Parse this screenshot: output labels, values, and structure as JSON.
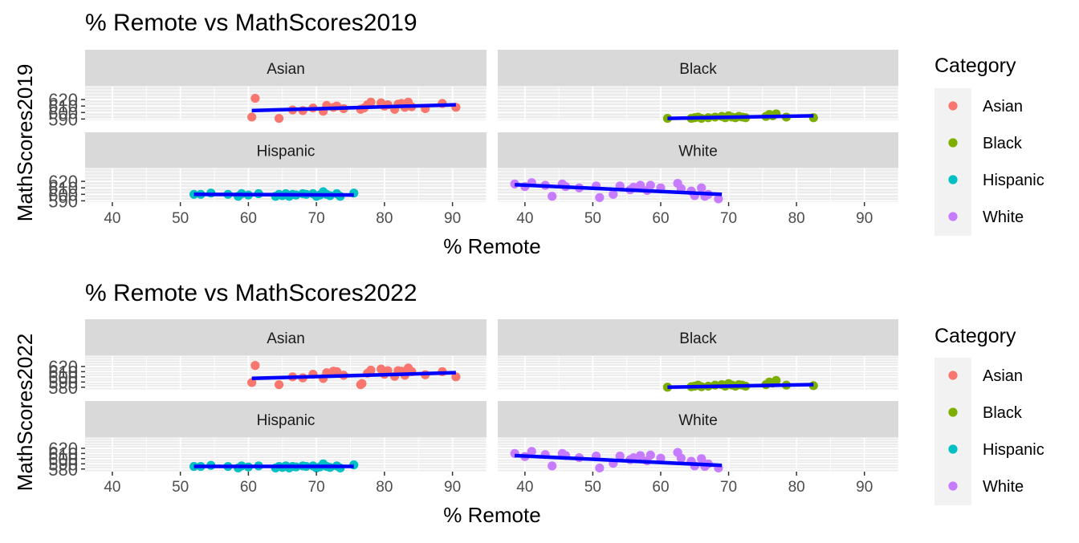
{
  "chart_data": [
    {
      "type": "scatter",
      "title": "% Remote vs MathScores2019",
      "xlabel": "% Remote",
      "ylabel": "MathScores2019",
      "xlim": [
        36,
        95
      ],
      "ylim": [
        588,
        640
      ],
      "x_ticks": [
        40,
        50,
        60,
        70,
        80,
        90
      ],
      "y_ticks": [
        590,
        600,
        610,
        620
      ],
      "y_tick_labels": [
        "590",
        "600",
        "610",
        "620"
      ],
      "legend_title": "Category",
      "legend_position": "right",
      "grid": true,
      "facets": [
        {
          "name": "Asian",
          "color": "#F8766D",
          "x": [
            60.5,
            61,
            64.5,
            66.5,
            68,
            69.5,
            71,
            71.5,
            72.5,
            73,
            74,
            76.5,
            77,
            77.5,
            78,
            79.5,
            80,
            80.5,
            81.5,
            82,
            82.5,
            83,
            83.5,
            84,
            86,
            88.5,
            90.5
          ],
          "y": [
            593,
            622,
            591,
            604,
            603,
            607,
            602,
            611,
            608,
            610,
            606,
            605,
            607,
            612,
            616,
            615,
            610,
            612,
            605,
            613,
            614,
            608,
            616,
            609,
            606,
            614,
            608
          ],
          "fit": [
            [
              60.5,
              603
            ],
            [
              90.5,
              612
            ]
          ]
        },
        {
          "name": "Black",
          "color": "#7CAE00",
          "x": [
            61,
            64.5,
            65,
            65.5,
            66,
            67,
            68,
            69,
            69.5,
            70,
            70.5,
            71,
            71.5,
            72,
            72.5,
            75.5,
            76,
            76.5,
            77,
            78.5,
            82.5
          ],
          "y": [
            591,
            591,
            592,
            593,
            591,
            592,
            593,
            594,
            592,
            595,
            593,
            592,
            594,
            593,
            592,
            594,
            597,
            595,
            598,
            593,
            592
          ],
          "fit": [
            [
              61,
              591
            ],
            [
              82.5,
              595
            ]
          ]
        },
        {
          "name": "Hispanic",
          "color": "#00BFC4",
          "x": [
            52,
            53,
            54.5,
            57,
            58.5,
            59,
            60,
            61.5,
            64,
            64.5,
            65,
            65.5,
            66,
            66.5,
            67,
            68,
            68.5,
            69.5,
            70,
            70.5,
            71,
            71.5,
            72,
            73,
            73.5,
            75.5
          ],
          "y": [
            600,
            600,
            602,
            600,
            597,
            601,
            599,
            601,
            597,
            600,
            598,
            601,
            597,
            600,
            599,
            601,
            600,
            601,
            597,
            599,
            604,
            600,
            598,
            601,
            597,
            602
          ],
          "fit": [
            [
              52,
              600
            ],
            [
              75.5,
              599
            ]
          ]
        },
        {
          "name": "White",
          "color": "#C77CFF",
          "x": [
            38.5,
            40,
            41,
            43,
            44,
            45.5,
            46,
            48,
            50.5,
            51,
            53,
            54,
            55.5,
            56,
            57,
            58,
            58.5,
            60,
            62.5,
            63,
            64.5,
            65,
            66,
            66.5,
            67,
            68.5
          ],
          "y": [
            616,
            612,
            618,
            614,
            597,
            616,
            612,
            610,
            613,
            595,
            600,
            613,
            607,
            611,
            614,
            606,
            614,
            610,
            617,
            609,
            605,
            598,
            610,
            597,
            600,
            593
          ],
          "fit": [
            [
              38.5,
              615
            ],
            [
              69,
              600
            ]
          ]
        }
      ]
    },
    {
      "type": "scatter",
      "title": "% Remote vs MathScores2022",
      "xlabel": "% Remote",
      "ylabel": "MathScores2022",
      "xlim": [
        36,
        95
      ],
      "ylim": [
        575,
        640
      ],
      "x_ticks": [
        40,
        50,
        60,
        70,
        80,
        90
      ],
      "y_ticks": [
        580,
        590,
        600,
        610,
        620
      ],
      "y_tick_labels": [
        "580",
        "590",
        "600",
        "610",
        "620"
      ],
      "legend_title": "Category",
      "legend_position": "right",
      "grid": true,
      "facets": [
        {
          "name": "Asian",
          "color": "#F8766D",
          "x": [
            60.5,
            61,
            64.5,
            66.5,
            68,
            69.5,
            71,
            71.5,
            72.5,
            73,
            74,
            76.5,
            76.7,
            77.5,
            78,
            79.5,
            80,
            80.5,
            81.5,
            82,
            82.5,
            83,
            83.5,
            84,
            86,
            88.5,
            90.5
          ],
          "y": [
            589,
            622,
            585,
            600,
            598,
            605,
            597,
            608,
            611,
            610,
            603,
            585,
            587,
            607,
            613,
            615,
            605,
            612,
            601,
            612,
            611,
            603,
            617,
            610,
            604,
            610,
            600
          ],
          "fit": [
            [
              60.5,
              597
            ],
            [
              90.5,
              608
            ]
          ]
        },
        {
          "name": "Black",
          "color": "#7CAE00",
          "x": [
            61,
            64.5,
            65,
            65.5,
            66,
            67,
            68,
            69,
            69.5,
            70,
            70.5,
            71,
            71.5,
            72,
            72.5,
            75.5,
            76,
            76.5,
            77,
            78.5,
            82.5
          ],
          "y": [
            580,
            581,
            582,
            584,
            581,
            582,
            584,
            585,
            582,
            587,
            584,
            582,
            585,
            584,
            582,
            585,
            590,
            588,
            593,
            584,
            583
          ],
          "fit": [
            [
              61,
              580
            ],
            [
              82.5,
              585
            ]
          ]
        },
        {
          "name": "Hispanic",
          "color": "#00BFC4",
          "x": [
            52,
            53,
            54.5,
            57,
            58.5,
            59,
            60,
            61.5,
            64,
            64.5,
            65,
            65.5,
            66,
            66.5,
            67,
            68,
            68.5,
            69.5,
            70,
            70.5,
            71,
            71.5,
            72,
            73,
            73.5,
            75.5
          ],
          "y": [
            585,
            585,
            587,
            585,
            582,
            586,
            584,
            586,
            582,
            585,
            583,
            586,
            582,
            585,
            584,
            586,
            585,
            586,
            582,
            584,
            590,
            585,
            583,
            586,
            582,
            588
          ],
          "fit": [
            [
              52,
              585
            ],
            [
              75.5,
              585
            ]
          ]
        },
        {
          "name": "White",
          "color": "#C77CFF",
          "x": [
            38.5,
            40,
            41,
            43,
            44,
            45.5,
            46,
            48,
            50.5,
            51,
            53,
            54,
            55.5,
            56,
            57,
            58,
            58.5,
            60,
            62.5,
            63,
            64.5,
            65,
            66,
            66.5,
            67,
            68.5
          ],
          "y": [
            610,
            604,
            614,
            608,
            586,
            610,
            606,
            602,
            605,
            582,
            591,
            605,
            598,
            602,
            606,
            596,
            607,
            601,
            612,
            601,
            595,
            586,
            600,
            585,
            590,
            582
          ],
          "fit": [
            [
              38.5,
              606
            ],
            [
              69,
              587
            ]
          ]
        }
      ]
    }
  ]
}
